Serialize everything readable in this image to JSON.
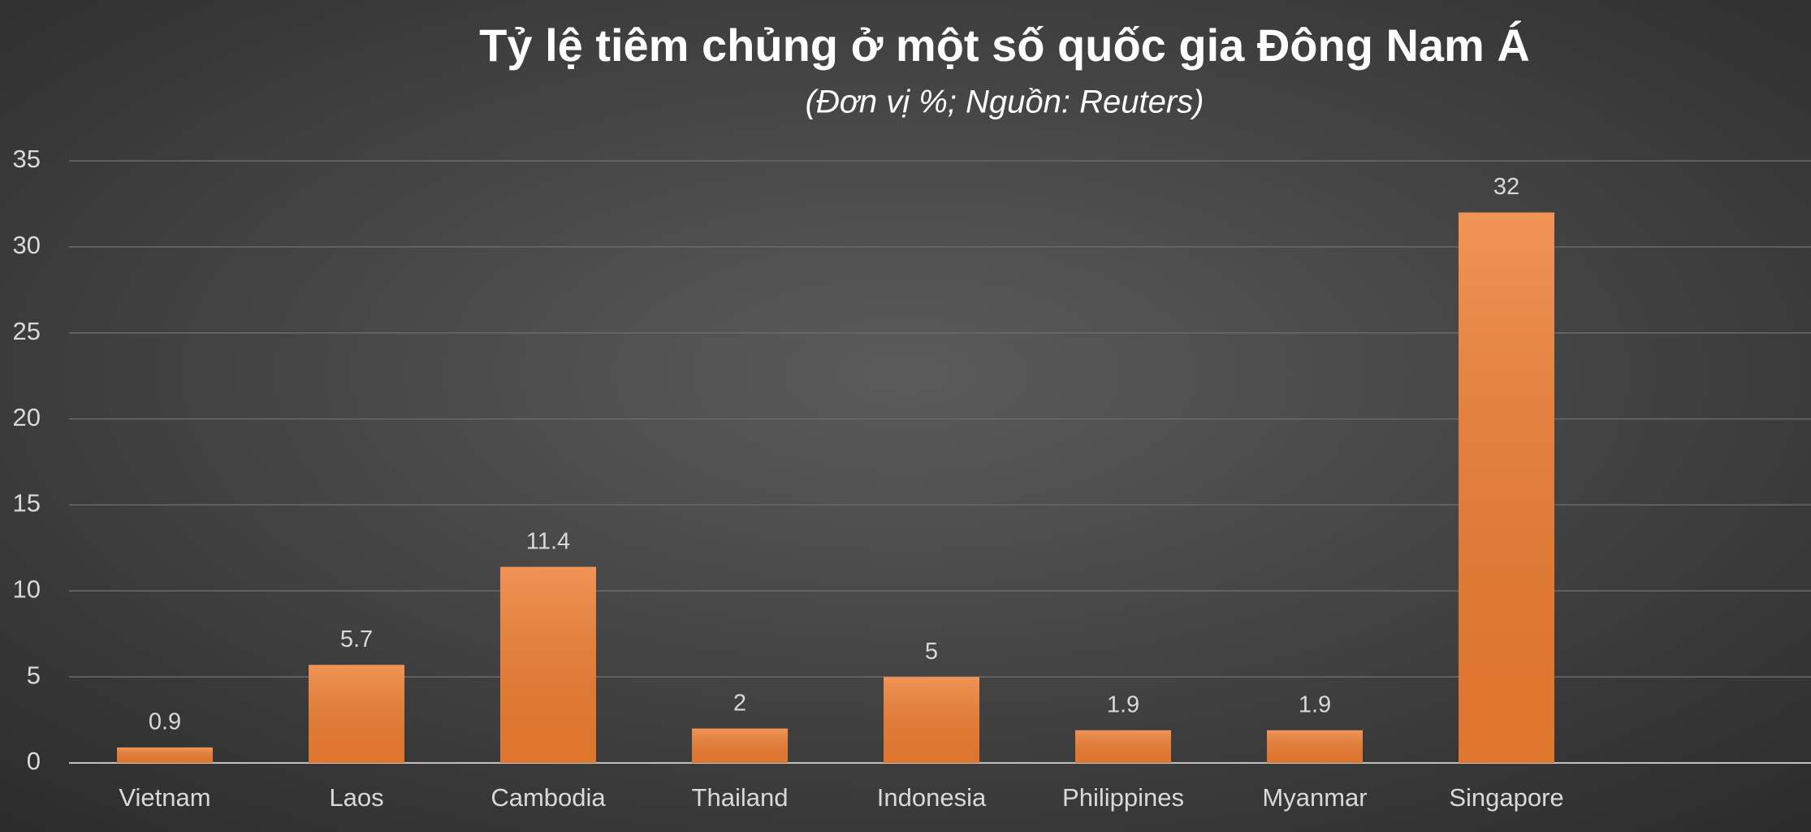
{
  "chart_data": {
    "type": "bar",
    "title": "Tỷ lệ tiêm chủng ở một số quốc gia Đông Nam Á",
    "subtitle": "(Đơn vị %; Nguồn: Reuters)",
    "categories": [
      "Vietnam",
      "Laos",
      "Cambodia",
      "Thailand",
      "Indonesia",
      "Philippines",
      "Myanmar",
      "Singapore"
    ],
    "values": [
      0.9,
      5.7,
      11.4,
      2,
      5,
      1.9,
      1.9,
      32
    ],
    "color": "#ed7d31",
    "ylim": [
      0,
      35
    ],
    "yticks": [
      0,
      5,
      10,
      15,
      20,
      25,
      30,
      35
    ],
    "grid": true
  }
}
